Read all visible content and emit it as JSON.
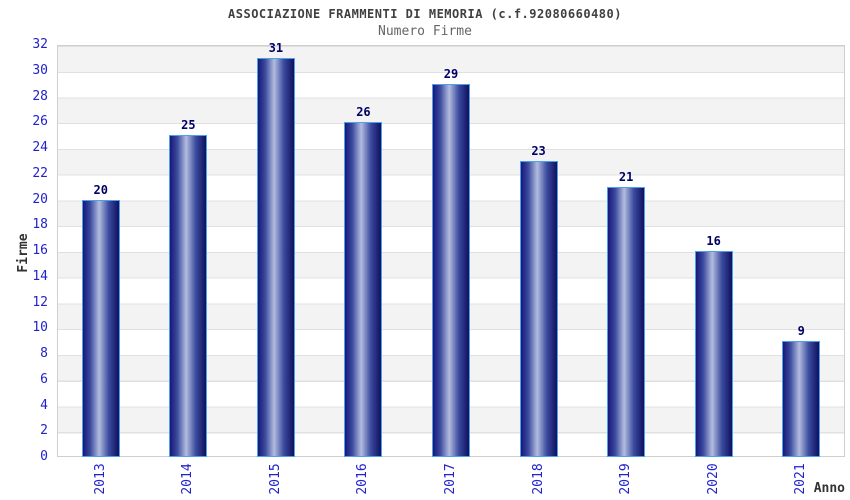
{
  "header": {
    "title": "ASSOCIAZIONE FRAMMENTI DI MEMORIA (c.f.92080660480)",
    "subtitle": "Numero Firme"
  },
  "chart_data": {
    "type": "bar",
    "title": "ASSOCIAZIONE FRAMMENTI DI MEMORIA (c.f.92080660480)",
    "subtitle": "Numero Firme",
    "categories": [
      "2013",
      "2014",
      "2015",
      "2016",
      "2017",
      "2018",
      "2019",
      "2020",
      "2021"
    ],
    "values": [
      20,
      25,
      31,
      26,
      29,
      23,
      21,
      16,
      9
    ],
    "xlabel": "Anno",
    "ylabel": "Firme",
    "ylim": [
      0,
      32
    ],
    "ytick_step": 2,
    "ytick_labels": [
      "0",
      "2",
      "4",
      "6",
      "8",
      "10",
      "12",
      "14",
      "16",
      "18",
      "20",
      "22",
      "24",
      "26",
      "28",
      "30",
      "32"
    ],
    "grid": "horizontal gridlines with alternating gray/white bands",
    "legend": "none",
    "colors": {
      "title": "#404040",
      "subtitle": "#666666",
      "tick_label": "#2222cc",
      "value_label": "#000066",
      "axis_title": "#333333",
      "band_gray": "#f3f3f3",
      "band_white": "#ffffff",
      "grid_line": "#e0e0e0",
      "plot_border": "#cfcfcf",
      "bar_gradient_dark": "#181878",
      "bar_gradient_light": "#b2bcdf",
      "bar_border": "#4da0ec"
    }
  }
}
